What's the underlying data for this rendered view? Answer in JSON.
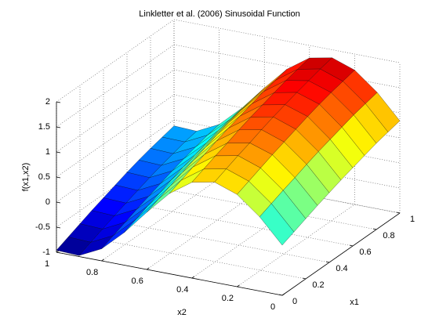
{
  "chart_data": {
    "type": "surface",
    "title": "Linkletter et al. (2006) Sinusoidal Function",
    "xlabel": "x1",
    "ylabel": "x2",
    "zlabel": "f(x1,x2)",
    "x": [
      0,
      0.1,
      0.2,
      0.3,
      0.4,
      0.5,
      0.6,
      0.7,
      0.8,
      0.9,
      1
    ],
    "y": [
      0,
      0.1,
      0.2,
      0.3,
      0.4,
      0.5,
      0.6,
      0.7,
      0.8,
      0.9,
      1
    ],
    "z": [
      [
        0,
        0.1,
        0.2,
        0.3,
        0.39,
        0.48,
        0.56,
        0.64,
        0.72,
        0.78,
        0.84
      ],
      [
        0.48,
        0.58,
        0.68,
        0.77,
        0.87,
        0.96,
        1.04,
        1.12,
        1.2,
        1.26,
        1.32
      ],
      [
        0.84,
        0.94,
        1.04,
        1.14,
        1.23,
        1.32,
        1.41,
        1.49,
        1.56,
        1.62,
        1.68
      ],
      [
        1.0,
        1.1,
        1.2,
        1.29,
        1.39,
        1.48,
        1.56,
        1.64,
        1.71,
        1.78,
        1.84
      ],
      [
        0.91,
        1.01,
        1.11,
        1.2,
        1.3,
        1.39,
        1.47,
        1.55,
        1.63,
        1.69,
        1.75
      ],
      [
        0.6,
        0.7,
        0.8,
        0.89,
        0.99,
        1.08,
        1.16,
        1.24,
        1.32,
        1.38,
        1.44
      ],
      [
        0.14,
        0.24,
        0.34,
        0.44,
        0.53,
        0.62,
        0.71,
        0.79,
        0.86,
        0.92,
        0.98
      ],
      [
        -0.35,
        -0.25,
        -0.15,
        -0.06,
        0.04,
        0.13,
        0.21,
        0.29,
        0.37,
        0.43,
        0.49
      ],
      [
        -0.76,
        -0.66,
        -0.56,
        -0.46,
        -0.37,
        -0.28,
        -0.19,
        -0.11,
        -0.04,
        0.03,
        0.08
      ],
      [
        -0.98,
        -0.88,
        -0.78,
        -0.68,
        -0.59,
        -0.5,
        -0.41,
        -0.33,
        -0.26,
        -0.19,
        -0.14
      ],
      [
        -0.96,
        -0.86,
        -0.76,
        -0.66,
        -0.57,
        -0.48,
        -0.39,
        -0.31,
        -0.24,
        -0.18,
        -0.12
      ]
    ],
    "xlim": [
      0,
      1
    ],
    "ylim": [
      0,
      1
    ],
    "zlim": [
      -1,
      2
    ],
    "xticks": [
      0,
      0.2,
      0.4,
      0.6,
      0.8,
      1
    ],
    "yticks": [
      0,
      0.2,
      0.4,
      0.6,
      0.8,
      1
    ],
    "zticks": [
      -1,
      -0.5,
      0,
      0.5,
      1,
      1.5,
      2
    ],
    "grid": true,
    "colormap": "jet"
  }
}
